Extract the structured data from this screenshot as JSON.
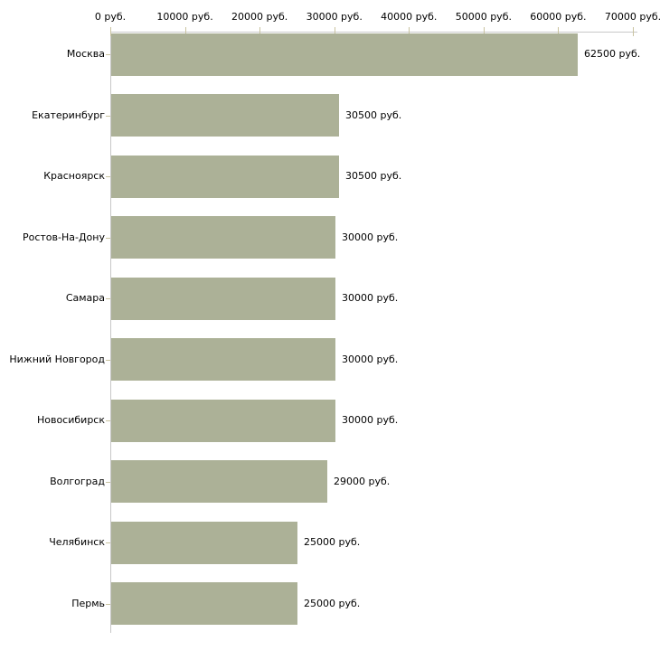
{
  "chart_data": {
    "type": "bar",
    "orientation": "horizontal",
    "title": "",
    "xlabel": "",
    "ylabel": "",
    "unit": "руб.",
    "categories": [
      "Москва",
      "Екатеринбург",
      "Красноярск",
      "Ростов-На-Дону",
      "Самара",
      "Нижний Новгород",
      "Новосибирск",
      "Волгоград",
      "Челябинск",
      "Пермь"
    ],
    "values": [
      62500,
      30500,
      30500,
      30000,
      30000,
      30000,
      30000,
      29000,
      25000,
      25000
    ],
    "value_labels": [
      "62500 руб.",
      "30500 руб.",
      "30500 руб.",
      "30000 руб.",
      "30000 руб.",
      "30000 руб.",
      "30000 руб.",
      "29000 руб.",
      "25000 руб.",
      "25000 руб."
    ],
    "x_ticks": [
      0,
      10000,
      20000,
      30000,
      40000,
      50000,
      60000,
      70000
    ],
    "x_tick_labels": [
      "0 руб.",
      "10000 руб.",
      "20000 руб.",
      "30000 руб.",
      "40000 руб.",
      "50000 руб.",
      "60000 руб.",
      "70000 руб."
    ],
    "xlim": [
      0,
      70000
    ],
    "axis_position": "top",
    "grid": false,
    "legend": false,
    "colors": {
      "bar": "#acb197",
      "axis": "#c8c8c8",
      "tick": "#c9c3a0",
      "text": "#000000",
      "background": "#ffffff"
    }
  }
}
